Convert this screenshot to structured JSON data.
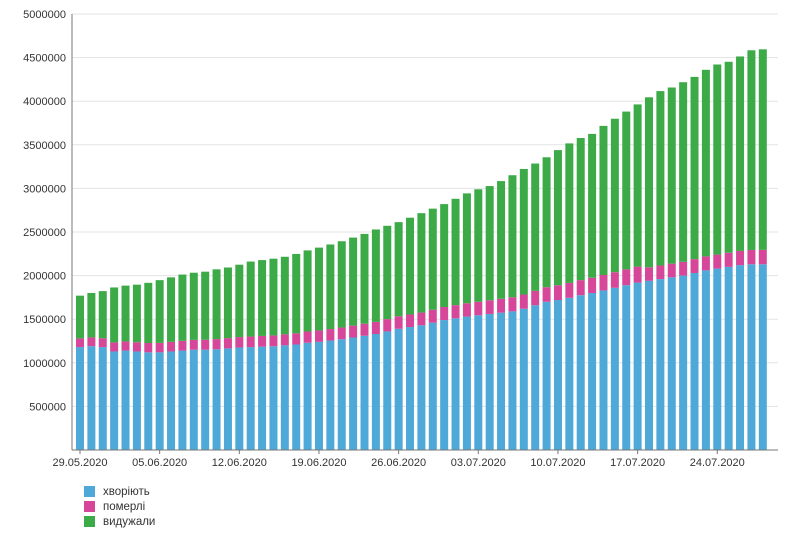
{
  "chart_data": {
    "type": "bar",
    "stacked": true,
    "ylim": [
      0,
      5000000
    ],
    "yticks": [
      500000,
      1000000,
      1500000,
      2000000,
      2500000,
      3000000,
      3500000,
      4000000,
      4500000,
      5000000
    ],
    "xtick_labels": [
      "29.05.2020",
      "05.06.2020",
      "12.06.2020",
      "19.06.2020",
      "26.06.2020",
      "03.07.2020",
      "10.07.2020",
      "17.07.2020",
      "24.07.2020"
    ],
    "xtick_every": 7,
    "grid": true,
    "legend_position": "bottom-left",
    "series": [
      {
        "name": "хворіють",
        "color": "#4ea8d8",
        "values": [
          1180000,
          1190000,
          1180000,
          1130000,
          1140000,
          1130000,
          1120000,
          1120000,
          1130000,
          1140000,
          1150000,
          1150000,
          1155000,
          1165000,
          1175000,
          1180000,
          1185000,
          1190000,
          1200000,
          1210000,
          1230000,
          1240000,
          1255000,
          1270000,
          1290000,
          1310000,
          1330000,
          1360000,
          1390000,
          1410000,
          1430000,
          1460000,
          1490000,
          1510000,
          1530000,
          1545000,
          1560000,
          1575000,
          1590000,
          1620000,
          1660000,
          1700000,
          1720000,
          1745000,
          1775000,
          1800000,
          1830000,
          1860000,
          1890000,
          1920000,
          1940000,
          1960000,
          1980000,
          2000000,
          2030000,
          2060000,
          2080000,
          2100000,
          2120000,
          2130000,
          2130000
        ]
      },
      {
        "name": "померлі",
        "color": "#d6479a",
        "values": [
          100000,
          101000,
          102000,
          104000,
          105000,
          106000,
          107000,
          108000,
          110000,
          112000,
          113000,
          115000,
          117000,
          118000,
          120000,
          121000,
          123000,
          124000,
          126000,
          128000,
          129000,
          131000,
          132000,
          134000,
          136000,
          138000,
          139000,
          141000,
          143000,
          144000,
          146000,
          148000,
          150000,
          151000,
          153000,
          155000,
          157000,
          159000,
          161000,
          163000,
          165000,
          167000,
          169000,
          171000,
          173000,
          175000,
          177000,
          179000,
          181000,
          183000,
          155000,
          156000,
          157000,
          158000,
          159000,
          160000,
          161000,
          162000,
          163000,
          164000,
          165000
        ]
      },
      {
        "name": "видужали",
        "color": "#3daa48",
        "values": [
          490000,
          510000,
          540000,
          630000,
          640000,
          660000,
          690000,
          720000,
          740000,
          760000,
          770000,
          780000,
          800000,
          810000,
          830000,
          860000,
          870000,
          880000,
          890000,
          910000,
          930000,
          950000,
          970000,
          990000,
          1010000,
          1030000,
          1060000,
          1070000,
          1080000,
          1110000,
          1140000,
          1160000,
          1180000,
          1220000,
          1260000,
          1290000,
          1310000,
          1350000,
          1400000,
          1440000,
          1460000,
          1490000,
          1550000,
          1600000,
          1630000,
          1650000,
          1710000,
          1760000,
          1810000,
          1860000,
          1950000,
          2000000,
          2020000,
          2060000,
          2090000,
          2140000,
          2180000,
          2190000,
          2230000,
          2290000,
          2300000
        ]
      }
    ]
  }
}
